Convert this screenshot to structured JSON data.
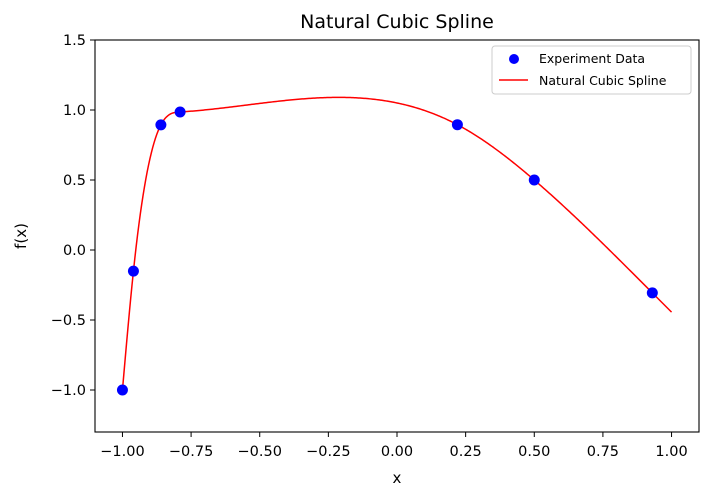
{
  "chart_data": {
    "type": "line",
    "title": "Natural Cubic Spline",
    "xlabel": "x",
    "ylabel": "f(x)",
    "xlim": [
      -1.1,
      1.1
    ],
    "ylim": [
      -1.3,
      1.5
    ],
    "x_ticks": [
      -1.0,
      -0.75,
      -0.5,
      -0.25,
      0.0,
      0.25,
      0.5,
      0.75,
      1.0
    ],
    "x_tick_labels": [
      "−1.00",
      "−0.75",
      "−0.50",
      "−0.25",
      "0.00",
      "0.25",
      "0.50",
      "0.75",
      "1.00"
    ],
    "y_ticks": [
      -1.0,
      -0.5,
      0.0,
      0.5,
      1.0,
      1.5
    ],
    "y_tick_labels": [
      "−1.0",
      "−0.5",
      "0.0",
      "0.5",
      "1.0",
      "1.5"
    ],
    "grid": false,
    "legend_position": "top-right",
    "series": [
      {
        "name": "Experiment Data",
        "kind": "scatter",
        "color": "#0000ff",
        "x": [
          -1.0,
          -0.96,
          -0.86,
          -0.79,
          0.22,
          0.5,
          0.93
        ],
        "y": [
          -1.0,
          -0.151,
          0.894,
          0.986,
          0.895,
          0.5,
          -0.306
        ]
      },
      {
        "name": "Natural Cubic Spline",
        "kind": "line",
        "color": "#ff0000",
        "x_range": [
          -1.0,
          1.0
        ]
      }
    ]
  }
}
